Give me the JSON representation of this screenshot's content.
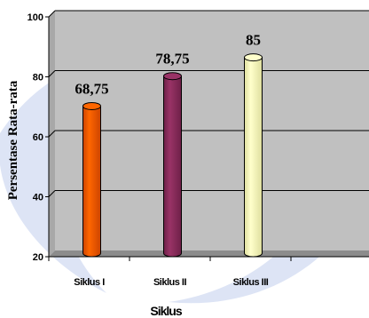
{
  "chart_data": {
    "type": "bar",
    "categories": [
      "Siklus I",
      "Siklus II",
      "Siklus III"
    ],
    "values": [
      68.75,
      78.75,
      85
    ],
    "data_labels": [
      "68,75",
      "78,75",
      "85"
    ],
    "ylim": [
      20,
      100
    ],
    "yticks": [
      20,
      40,
      60,
      80,
      100
    ],
    "ylabel": "Persentase Rata-rata",
    "xlabel": "Siklus",
    "grid": true,
    "legend": "none",
    "style": "3d-cylinder",
    "colors": {
      "bars": [
        "#ff6600",
        "#993366",
        "#ffffcc"
      ],
      "bar_shades": [
        "#cc4400",
        "#6e2048",
        "#dede9e"
      ],
      "plot_background": "#c0c0c0",
      "watermark": "#d7dff3"
    }
  }
}
